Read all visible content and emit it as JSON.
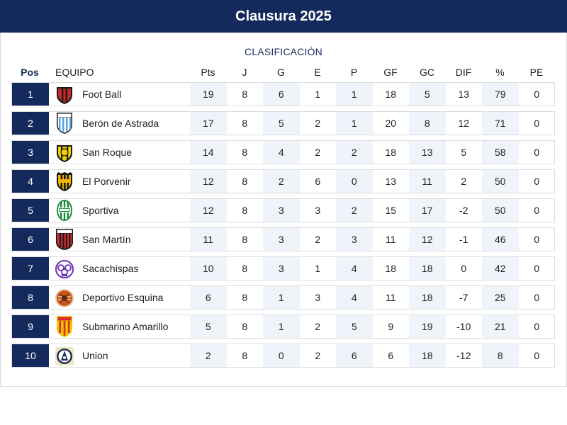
{
  "header": {
    "title": "Clausura 2025"
  },
  "table": {
    "subtitle": "CLASIFICACIÓN",
    "columns": {
      "pos": "Pos",
      "team": "EQUIPO",
      "pts": "Pts",
      "j": "J",
      "g": "G",
      "e": "E",
      "p": "P",
      "gf": "GF",
      "gc": "GC",
      "dif": "DIF",
      "pct": "%",
      "pe": "PE"
    },
    "rows": [
      {
        "pos": "1",
        "team": "Foot Ball",
        "logo": "foot-ball-crest-icon",
        "pts": "19",
        "j": "8",
        "g": "6",
        "e": "1",
        "p": "1",
        "gf": "18",
        "gc": "5",
        "dif": "13",
        "pct": "79",
        "pe": "0"
      },
      {
        "pos": "2",
        "team": "Berón de Astrada",
        "logo": "beron-de-astrada-crest-icon",
        "pts": "17",
        "j": "8",
        "g": "5",
        "e": "2",
        "p": "1",
        "gf": "20",
        "gc": "8",
        "dif": "12",
        "pct": "71",
        "pe": "0"
      },
      {
        "pos": "3",
        "team": "San Roque",
        "logo": "san-roque-crest-icon",
        "pts": "14",
        "j": "8",
        "g": "4",
        "e": "2",
        "p": "2",
        "gf": "18",
        "gc": "13",
        "dif": "5",
        "pct": "58",
        "pe": "0"
      },
      {
        "pos": "4",
        "team": "El Porvenir",
        "logo": "el-porvenir-crest-icon",
        "pts": "12",
        "j": "8",
        "g": "2",
        "e": "6",
        "p": "0",
        "gf": "13",
        "gc": "11",
        "dif": "2",
        "pct": "50",
        "pe": "0"
      },
      {
        "pos": "5",
        "team": "Sportiva",
        "logo": "sportiva-crest-icon",
        "pts": "12",
        "j": "8",
        "g": "3",
        "e": "3",
        "p": "2",
        "gf": "15",
        "gc": "17",
        "dif": "-2",
        "pct": "50",
        "pe": "0"
      },
      {
        "pos": "6",
        "team": "San Martín",
        "logo": "san-martin-crest-icon",
        "pts": "11",
        "j": "8",
        "g": "3",
        "e": "2",
        "p": "3",
        "gf": "11",
        "gc": "12",
        "dif": "-1",
        "pct": "46",
        "pe": "0"
      },
      {
        "pos": "7",
        "team": "Sacachispas",
        "logo": "sacachispas-crest-icon",
        "pts": "10",
        "j": "8",
        "g": "3",
        "e": "1",
        "p": "4",
        "gf": "18",
        "gc": "18",
        "dif": "0",
        "pct": "42",
        "pe": "0"
      },
      {
        "pos": "8",
        "team": "Deportivo Esquina",
        "logo": "deportivo-esquina-crest-icon",
        "pts": "6",
        "j": "8",
        "g": "1",
        "e": "3",
        "p": "4",
        "gf": "11",
        "gc": "18",
        "dif": "-7",
        "pct": "25",
        "pe": "0"
      },
      {
        "pos": "9",
        "team": "Submarino Amarillo",
        "logo": "submarino-amarillo-crest-icon",
        "pts": "5",
        "j": "8",
        "g": "1",
        "e": "2",
        "p": "5",
        "gf": "9",
        "gc": "19",
        "dif": "-10",
        "pct": "21",
        "pe": "0"
      },
      {
        "pos": "10",
        "team": "Union",
        "logo": "union-crest-icon",
        "pts": "2",
        "j": "8",
        "g": "0",
        "e": "2",
        "p": "6",
        "gf": "6",
        "gc": "18",
        "dif": "-12",
        "pct": "8",
        "pe": "0"
      }
    ]
  },
  "colors": {
    "navy": "#152a5c",
    "shade": "#eef4fa",
    "border": "#dcdcdc"
  }
}
